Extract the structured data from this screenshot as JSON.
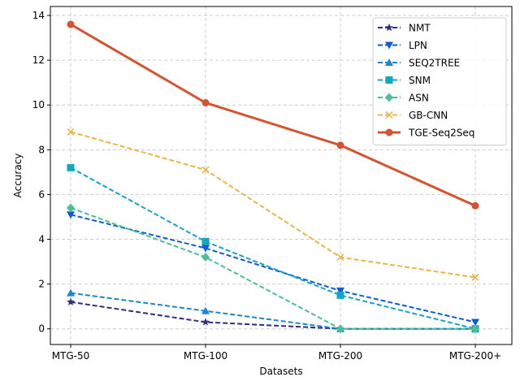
{
  "chart_data": {
    "type": "line",
    "xlabel": "Datasets",
    "ylabel": "Accuracy",
    "categories": [
      "MTG-50",
      "MTG-100",
      "MTG-200",
      "MTG-200+"
    ],
    "ylim": [
      -0.7,
      14.4
    ],
    "yticks": [
      0,
      2,
      4,
      6,
      8,
      10,
      12,
      14
    ],
    "grid": true,
    "legend_position": "top-right",
    "series": [
      {
        "name": "NMT",
        "color": "#2e2d7e",
        "marker": "star",
        "linestyle": "dashed",
        "values": [
          1.2,
          0.3,
          0.0,
          0.0
        ]
      },
      {
        "name": "LPN",
        "color": "#0f5bd6",
        "marker": "triangle-down",
        "linestyle": "dashed",
        "values": [
          5.1,
          3.6,
          1.7,
          0.3
        ]
      },
      {
        "name": "SEQ2TREE",
        "color": "#1d86cc",
        "marker": "triangle-up",
        "linestyle": "dashed",
        "values": [
          1.6,
          0.8,
          0.0,
          0.0
        ]
      },
      {
        "name": "SNM",
        "color": "#12a6c2",
        "marker": "square",
        "linestyle": "dashed",
        "values": [
          7.2,
          3.9,
          1.5,
          0.0
        ]
      },
      {
        "name": "ASN",
        "color": "#4bbf95",
        "marker": "diamond",
        "linestyle": "dashed",
        "values": [
          5.4,
          3.2,
          0.0,
          0.0
        ]
      },
      {
        "name": "GB-CNN",
        "color": "#e8b64a",
        "marker": "x",
        "linestyle": "dashed",
        "values": [
          8.8,
          7.1,
          3.2,
          2.3
        ]
      },
      {
        "name": "TGE-Seq2Seq",
        "color": "#d35430",
        "marker": "circle",
        "linestyle": "solid",
        "values": [
          13.6,
          10.1,
          8.2,
          5.5
        ]
      }
    ]
  }
}
